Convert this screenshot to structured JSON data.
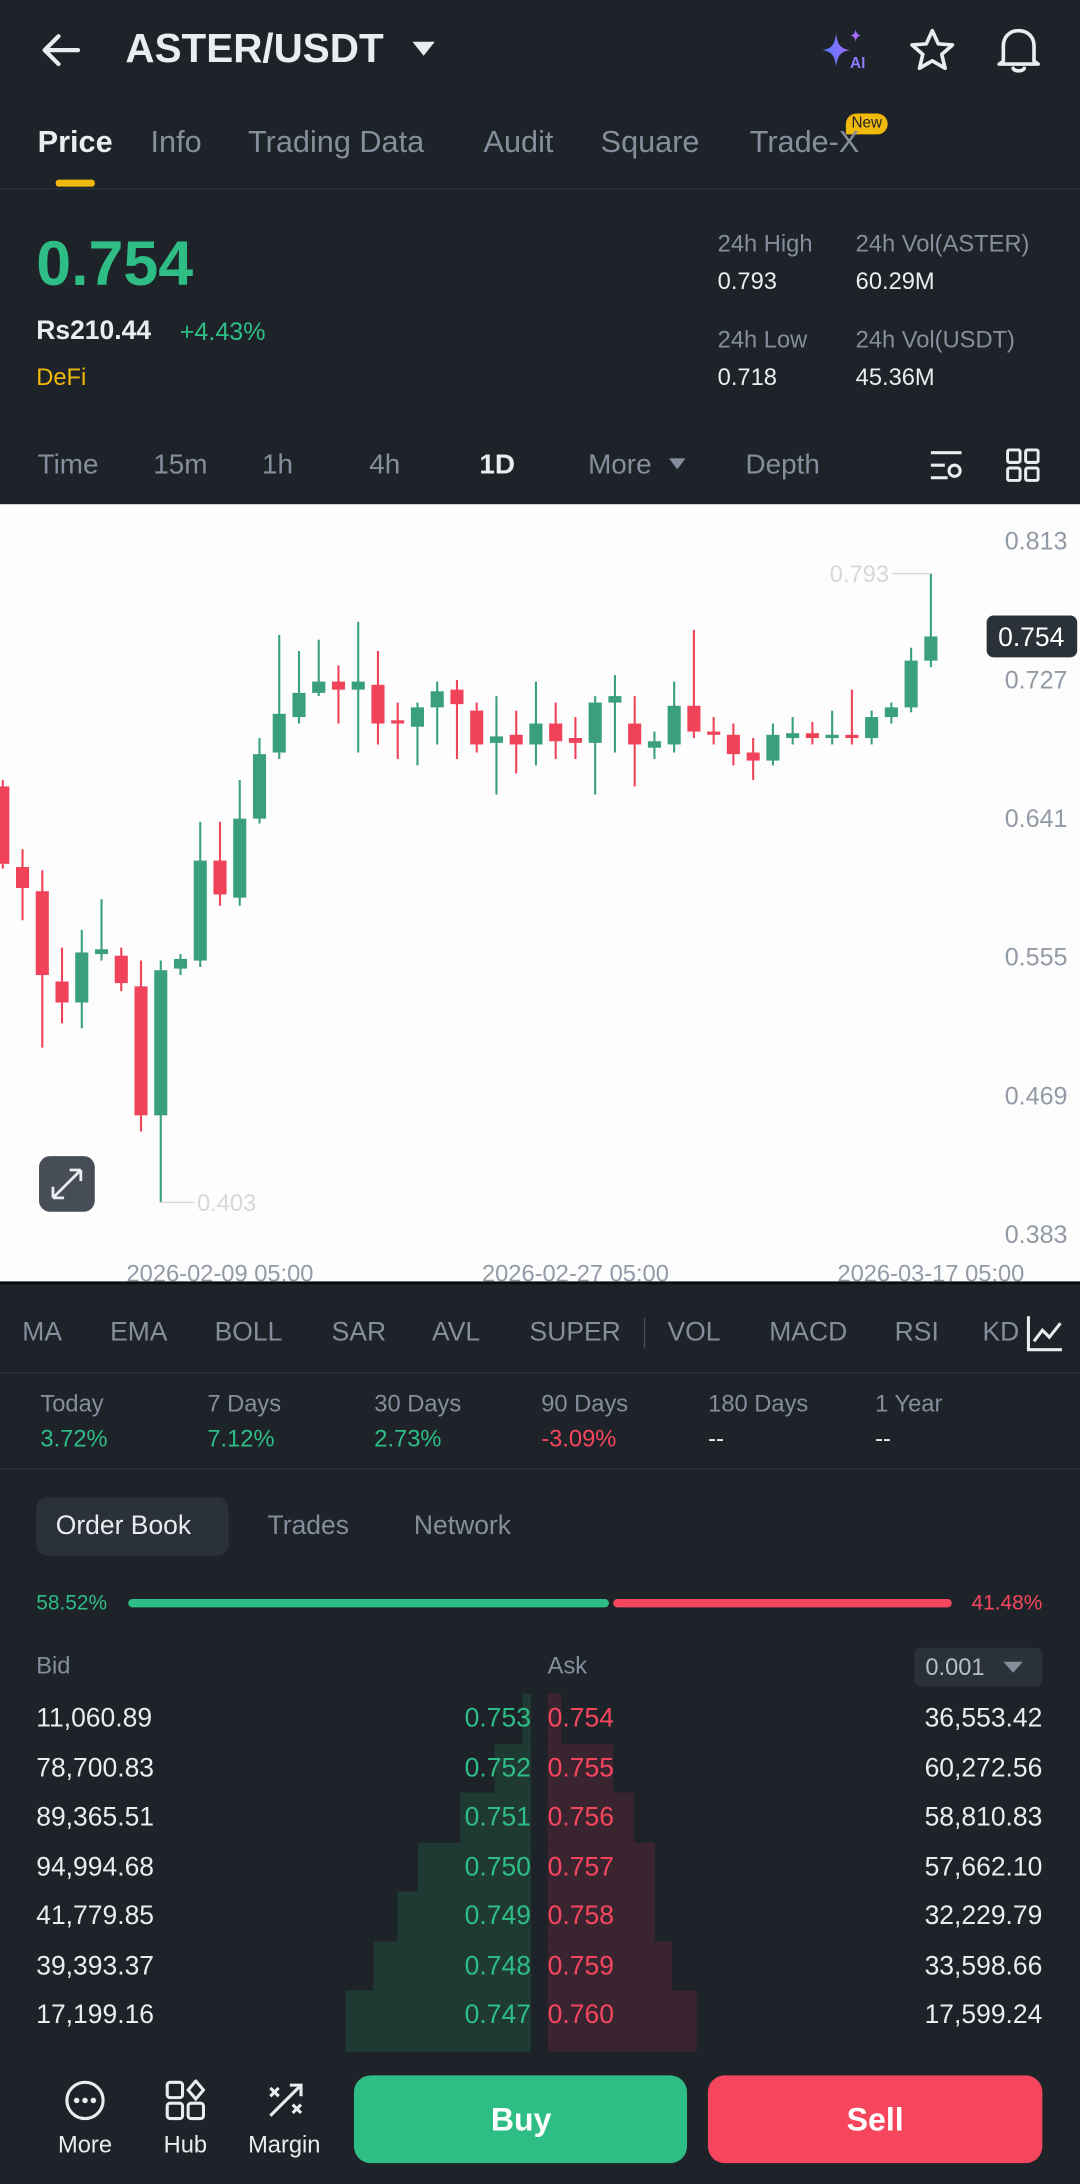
{
  "header": {
    "pair": "ASTER/USDT"
  },
  "tabs": [
    "Price",
    "Info",
    "Trading Data",
    "Audit",
    "Square",
    "Trade-X"
  ],
  "new_badge": "New",
  "price": {
    "last": "0.754",
    "fiat": "Rs210.44",
    "change": "+4.43%",
    "tag": "DeFi"
  },
  "stats": [
    {
      "label": "24h High",
      "value": "0.793"
    },
    {
      "label": "24h Vol(ASTER)",
      "value": "60.29M"
    },
    {
      "label": "24h Low",
      "value": "0.718"
    },
    {
      "label": "24h Vol(USDT)",
      "value": "45.36M"
    }
  ],
  "intervals": [
    "Time",
    "15m",
    "1h",
    "4h",
    "1D",
    "More",
    "Depth"
  ],
  "chart_data": {
    "type": "candlestick",
    "x": [
      null,
      null,
      null,
      null,
      null,
      null,
      null,
      null,
      null,
      null,
      null,
      "2026-02-09 05:00",
      null,
      null,
      null,
      null,
      null,
      null,
      null,
      null,
      null,
      null,
      null,
      null,
      null,
      null,
      null,
      null,
      null,
      "2026-02-27 05:00",
      null,
      null,
      null,
      null,
      null,
      null,
      null,
      null,
      null,
      null,
      null,
      null,
      null,
      null,
      null,
      null,
      null,
      "2026-03-17 05:00"
    ],
    "open": [
      0.661,
      0.611,
      0.596,
      0.54,
      0.527,
      0.557,
      0.556,
      0.537,
      0.457,
      0.548,
      0.553,
      0.615,
      0.592,
      0.641,
      0.682,
      0.704,
      0.719,
      0.726,
      0.721,
      0.724,
      0.702,
      0.698,
      0.71,
      0.721,
      0.708,
      0.688,
      0.693,
      0.687,
      0.7,
      0.691,
      0.688,
      0.713,
      0.7,
      0.685,
      0.687,
      0.711,
      0.695,
      0.693,
      0.682,
      0.677,
      0.691,
      0.694,
      0.691,
      0.693,
      0.691,
      0.704,
      0.71,
      0.739
    ],
    "high": [
      0.665,
      0.622,
      0.609,
      0.561,
      0.572,
      0.591,
      0.561,
      0.553,
      0.553,
      0.557,
      0.639,
      0.639,
      0.665,
      0.691,
      0.755,
      0.745,
      0.752,
      0.736,
      0.763,
      0.745,
      0.713,
      0.713,
      0.726,
      0.727,
      0.713,
      0.717,
      0.708,
      0.726,
      0.713,
      0.704,
      0.717,
      0.73,
      0.717,
      0.695,
      0.726,
      0.758,
      0.704,
      0.7,
      0.691,
      0.7,
      0.704,
      0.701,
      0.708,
      0.721,
      0.708,
      0.713,
      0.747,
      0.793
    ],
    "low": [
      0.61,
      0.578,
      0.499,
      0.514,
      0.511,
      0.553,
      0.534,
      0.447,
      0.403,
      0.544,
      0.549,
      0.587,
      0.587,
      0.638,
      0.678,
      0.7,
      0.717,
      0.7,
      0.682,
      0.687,
      0.678,
      0.674,
      0.687,
      0.678,
      0.682,
      0.656,
      0.669,
      0.674,
      0.678,
      0.678,
      0.656,
      0.682,
      0.661,
      0.678,
      0.682,
      0.691,
      0.687,
      0.674,
      0.665,
      0.674,
      0.687,
      0.687,
      0.687,
      0.687,
      0.687,
      0.7,
      0.707,
      0.735
    ],
    "close": [
      0.613,
      0.598,
      0.544,
      0.527,
      0.558,
      0.56,
      0.539,
      0.457,
      0.547,
      0.554,
      0.615,
      0.594,
      0.641,
      0.681,
      0.706,
      0.719,
      0.726,
      0.721,
      0.726,
      0.7,
      0.7,
      0.71,
      0.72,
      0.712,
      0.687,
      0.692,
      0.687,
      0.7,
      0.689,
      0.688,
      0.713,
      0.717,
      0.687,
      0.689,
      0.711,
      0.695,
      0.693,
      0.681,
      0.677,
      0.693,
      0.694,
      0.691,
      0.693,
      0.691,
      0.704,
      0.71,
      0.739,
      0.754
    ],
    "up_color": "#3aa07c",
    "down_color": "#f0435a",
    "ylim": [
      0.354,
      0.836
    ],
    "yticks": [
      0.813,
      0.727,
      0.641,
      0.555,
      0.469,
      0.383
    ],
    "grid": false
  },
  "indicators": [
    "MA",
    "EMA",
    "BOLL",
    "SAR",
    "AVL",
    "SUPER",
    "VOL",
    "MACD",
    "RSI",
    "KD"
  ],
  "performance": [
    {
      "label": "Today",
      "value": "3.72%"
    },
    {
      "label": "7 Days",
      "value": "7.12%"
    },
    {
      "label": "30 Days",
      "value": "2.73%"
    },
    {
      "label": "90 Days",
      "value": "-3.09%"
    },
    {
      "label": "180 Days",
      "value": "--"
    },
    {
      "label": "1 Year",
      "value": "--"
    }
  ],
  "book_tabs": [
    "Order Book",
    "Trades",
    "Network"
  ],
  "ratio": {
    "bid": "58.52%",
    "ask": "41.48%"
  },
  "book_header": {
    "bid": "Bid",
    "ask": "Ask",
    "step": "0.001"
  },
  "order_book": [
    [
      "11,060.89",
      "0.753",
      "0.754",
      "36,553.42"
    ],
    [
      "78,700.83",
      "0.752",
      "0.755",
      "60,272.56"
    ],
    [
      "89,365.51",
      "0.751",
      "0.756",
      "58,810.83"
    ],
    [
      "94,994.68",
      "0.750",
      "0.757",
      "57,662.10"
    ],
    [
      "41,779.85",
      "0.749",
      "0.758",
      "32,229.79"
    ],
    [
      "39,393.37",
      "0.748",
      "0.759",
      "33,598.66"
    ],
    [
      "17,199.16",
      "0.747",
      "0.760",
      "17,599.24"
    ]
  ],
  "bottom_nav": [
    "More",
    "Hub",
    "Margin"
  ],
  "actions": {
    "buy": "Buy",
    "sell": "Sell"
  }
}
